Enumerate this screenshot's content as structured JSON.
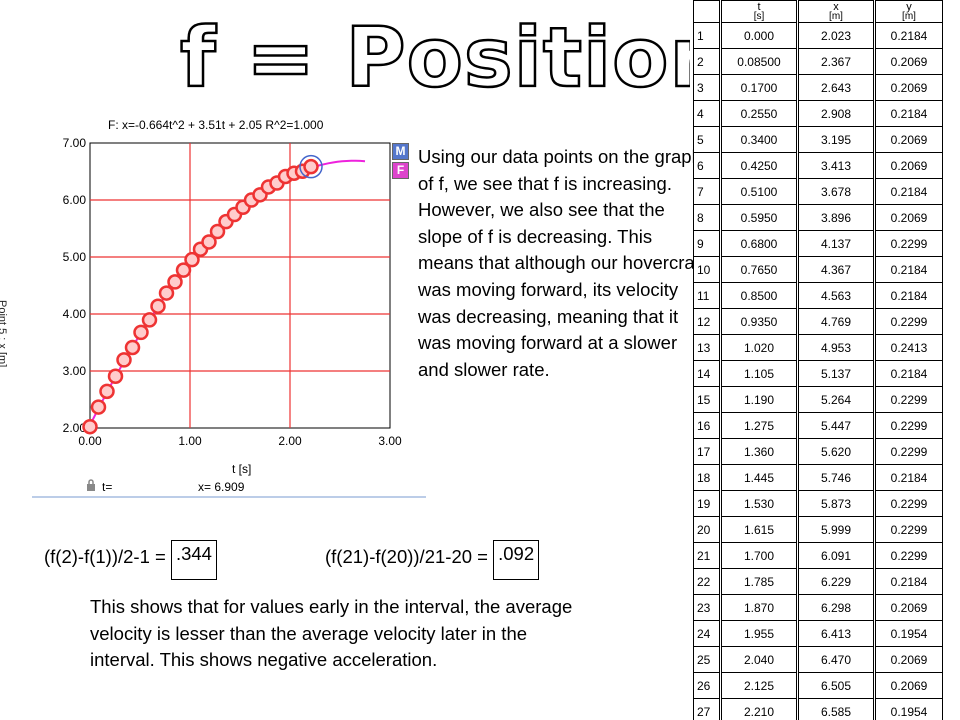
{
  "title": "f = Position",
  "graph": {
    "formula": "F: x=-0.664t^2 + 3.51t + 2.05   R^2=1.000",
    "xlabel": "t [s]",
    "ylabel": "Point 5 : x [m]",
    "buttons": {
      "m": "M",
      "f": "F"
    },
    "status_t": "t=",
    "status_x": "x= 6.909"
  },
  "chart_data": {
    "type": "scatter",
    "title": "",
    "xlabel": "t [s]",
    "ylabel": "Point 5 : x [m]",
    "xlim": [
      0,
      3
    ],
    "ylim": [
      2,
      7
    ],
    "x_ticks": [
      "0.00",
      "1.00",
      "2.00",
      "3.00"
    ],
    "y_ticks": [
      "2.00",
      "3.00",
      "4.00",
      "5.00",
      "6.00",
      "7.00"
    ],
    "grid": true,
    "fit": {
      "a": -0.664,
      "b": 3.51,
      "c": 2.05,
      "x_end": 2.75
    },
    "colors": {
      "grid": "#ee3333",
      "points": "#ee3333",
      "fill": "#ffcccc",
      "fit": "#ee22dd",
      "marker": "#4466cc"
    },
    "series": [
      {
        "x": [
          0.0,
          0.085,
          0.17,
          0.255,
          0.34,
          0.425,
          0.51,
          0.595,
          0.68,
          0.765,
          0.85,
          0.935,
          1.02,
          1.105,
          1.19,
          1.275,
          1.36,
          1.445,
          1.53,
          1.615,
          1.7,
          1.785,
          1.87,
          1.955,
          2.04,
          2.125,
          2.21
        ],
        "y": [
          2.023,
          2.367,
          2.643,
          2.908,
          3.195,
          3.413,
          3.678,
          3.896,
          4.137,
          4.367,
          4.563,
          4.769,
          4.953,
          5.137,
          5.264,
          5.447,
          5.62,
          5.746,
          5.873,
          5.999,
          6.091,
          6.229,
          6.298,
          6.413,
          6.47,
          6.505,
          6.585
        ]
      }
    ]
  },
  "paragraph": "Using our data points on the graph of f, we see that f is increasing. However, we also see that the slope of f is decreasing. This means that although our hovercraft was moving forward, its velocity was decreasing, meaning that it was moving forward at a slower and slower rate.",
  "formula1": {
    "expr": "(f(2)-f(1))/2-1 = ",
    "value": ".344"
  },
  "formula2": {
    "expr": "(f(21)-f(20))/21-20 = ",
    "value": ".092"
  },
  "conclusion": "This shows that for values early in the interval, the average velocity is lesser than the average velocity later in the interval. This shows negative acceleration.",
  "table": {
    "headers": [
      {
        "name": "t",
        "unit": "[s]"
      },
      {
        "name": "x",
        "unit": "[m]"
      },
      {
        "name": "y",
        "unit": "[m]"
      }
    ],
    "rows": [
      [
        "1",
        "0.000",
        "2.023",
        "0.2184"
      ],
      [
        "2",
        "0.08500",
        "2.367",
        "0.2069"
      ],
      [
        "3",
        "0.1700",
        "2.643",
        "0.2069"
      ],
      [
        "4",
        "0.2550",
        "2.908",
        "0.2184"
      ],
      [
        "5",
        "0.3400",
        "3.195",
        "0.2069"
      ],
      [
        "6",
        "0.4250",
        "3.413",
        "0.2069"
      ],
      [
        "7",
        "0.5100",
        "3.678",
        "0.2184"
      ],
      [
        "8",
        "0.5950",
        "3.896",
        "0.2069"
      ],
      [
        "9",
        "0.6800",
        "4.137",
        "0.2299"
      ],
      [
        "10",
        "0.7650",
        "4.367",
        "0.2184"
      ],
      [
        "11",
        "0.8500",
        "4.563",
        "0.2184"
      ],
      [
        "12",
        "0.9350",
        "4.769",
        "0.2299"
      ],
      [
        "13",
        "1.020",
        "4.953",
        "0.2413"
      ],
      [
        "14",
        "1.105",
        "5.137",
        "0.2184"
      ],
      [
        "15",
        "1.190",
        "5.264",
        "0.2299"
      ],
      [
        "16",
        "1.275",
        "5.447",
        "0.2299"
      ],
      [
        "17",
        "1.360",
        "5.620",
        "0.2299"
      ],
      [
        "18",
        "1.445",
        "5.746",
        "0.2184"
      ],
      [
        "19",
        "1.530",
        "5.873",
        "0.2299"
      ],
      [
        "20",
        "1.615",
        "5.999",
        "0.2299"
      ],
      [
        "21",
        "1.700",
        "6.091",
        "0.2299"
      ],
      [
        "22",
        "1.785",
        "6.229",
        "0.2184"
      ],
      [
        "23",
        "1.870",
        "6.298",
        "0.2069"
      ],
      [
        "24",
        "1.955",
        "6.413",
        "0.1954"
      ],
      [
        "25",
        "2.040",
        "6.470",
        "0.2069"
      ],
      [
        "26",
        "2.125",
        "6.505",
        "0.2069"
      ],
      [
        "27",
        "2.210",
        "6.585",
        "0.1954"
      ]
    ]
  }
}
